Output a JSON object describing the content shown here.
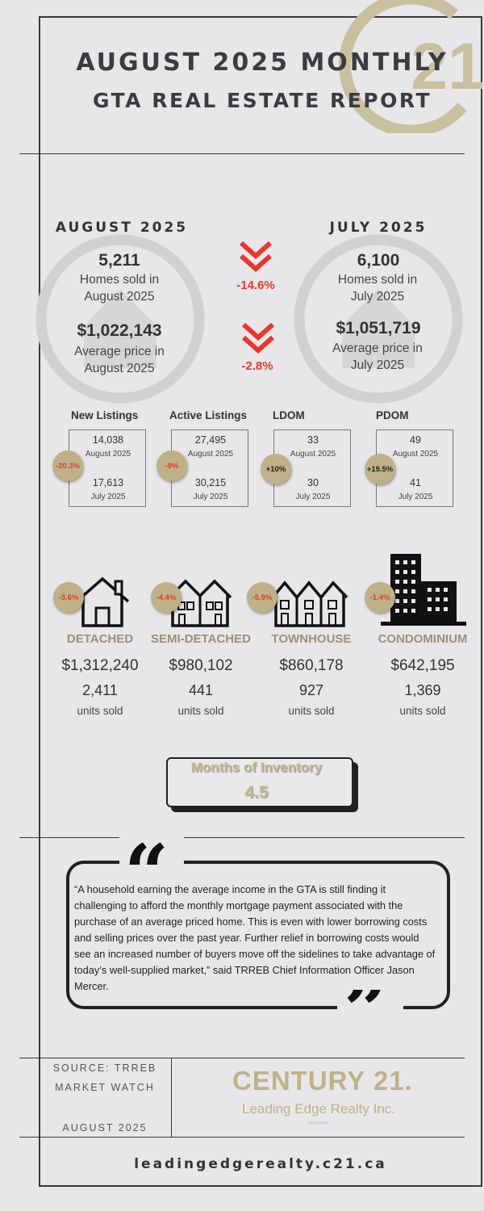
{
  "header": {
    "title_line1": "AUGUST 2025 MONTHLY",
    "title_line2": "GTA REAL ESTATE REPORT",
    "logo_digits": "21"
  },
  "summary": {
    "current": {
      "label": "AUGUST 2025",
      "homes_sold": "5,211",
      "homes_sold_label": "Homes sold in August 2025",
      "avg_price": "$1,022,143",
      "avg_price_label": "Average price in August 2025"
    },
    "previous": {
      "label": "JULY 2025",
      "homes_sold": "6,100",
      "homes_sold_label": "Homes sold in July 2025",
      "avg_price": "$1,051,719",
      "avg_price_label": "Average price in July 2025"
    },
    "homes_sold_change": "-14.6%",
    "avg_price_change": "-2.8%",
    "change_color": "#e8382e"
  },
  "metrics": [
    {
      "label": "New Listings",
      "current": "14,038",
      "current_period": "August 2025",
      "previous": "17,613",
      "previous_period": "July 2025",
      "change": "-20.3%",
      "direction": "down"
    },
    {
      "label": "Active Listings",
      "current": "27,495",
      "current_period": "August 2025",
      "previous": "30,215",
      "previous_period": "July 2025",
      "change": "-9%",
      "direction": "down"
    },
    {
      "label": "LDOM",
      "current": "33",
      "current_period": "August 2025",
      "previous": "30",
      "previous_period": "July 2025",
      "change": "+10%",
      "direction": "up"
    },
    {
      "label": "PDOM",
      "current": "49",
      "current_period": "August 2025",
      "previous": "41",
      "previous_period": "July 2025",
      "change": "+19.5%",
      "direction": "up"
    }
  ],
  "property_types": [
    {
      "name": "DETACHED",
      "price": "$1,312,240",
      "units": "2,411",
      "units_label": "units sold",
      "change": "-3.6%",
      "icon": "house-icon"
    },
    {
      "name": "SEMI-DETACHED",
      "price": "$980,102",
      "units": "441",
      "units_label": "units sold",
      "change": "-4.4%",
      "icon": "semi-detached-icon"
    },
    {
      "name": "TOWNHOUSE",
      "price": "$860,178",
      "units": "927",
      "units_label": "units sold",
      "change": "-5.9%",
      "icon": "townhouse-icon"
    },
    {
      "name": "CONDOMINIUM",
      "price": "$642,195",
      "units": "1,369",
      "units_label": "units sold",
      "change": "-1.4%",
      "icon": "condominium-icon"
    }
  ],
  "inventory": {
    "label": "Months of Inventory",
    "value": "4.5"
  },
  "quote": {
    "text": "“A household earning the average income in the GTA is still finding it challenging to afford the monthly mortgage payment associated with the purchase of an average priced home. This is even with lower borrowing costs and selling prices over the past year. Further relief in borrowing costs would see an increased number of buyers move off the sidelines to take advantage of today’s well-supplied market,” said TRREB Chief Information Officer Jason Mercer."
  },
  "footer": {
    "source_line1": "SOURCE: TRREB",
    "source_line2": "MARKET WATCH",
    "source_date": "AUGUST 2025",
    "brand": "CENTURY 21.",
    "brand_sub": "Leading Edge Realty Inc.",
    "brand_tiny": "BROKERAGE",
    "url": "leadingedgerealty.c21.ca"
  },
  "colors": {
    "gold": "#bdb389",
    "badge": "#bfb087",
    "red": "#e8382e",
    "background": "#e7e7e9"
  }
}
